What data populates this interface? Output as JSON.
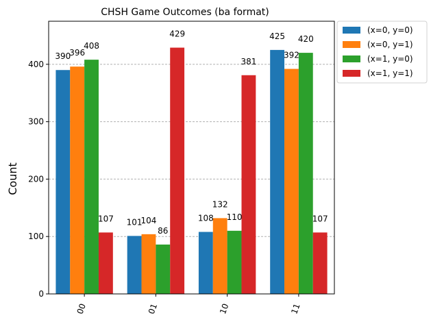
{
  "chart_data": {
    "type": "bar",
    "title": "CHSH Game Outcomes (ba format)",
    "xlabel": "",
    "ylabel": "Count",
    "categories": [
      "00",
      "01",
      "10",
      "11"
    ],
    "ylim": [
      0,
      475
    ],
    "yticks": [
      0,
      100,
      200,
      300,
      400
    ],
    "grid": true,
    "legend_position": "outside-top-right",
    "series": [
      {
        "name": "(x=0, y=0)",
        "color": "#1f77b4",
        "values": [
          390,
          101,
          108,
          425
        ]
      },
      {
        "name": "(x=0, y=1)",
        "color": "#ff7f0e",
        "values": [
          396,
          104,
          132,
          392
        ]
      },
      {
        "name": "(x=1, y=0)",
        "color": "#2ca02c",
        "values": [
          408,
          86,
          110,
          420
        ]
      },
      {
        "name": "(x=1, y=1)",
        "color": "#d62728",
        "values": [
          107,
          429,
          381,
          107
        ]
      }
    ]
  }
}
